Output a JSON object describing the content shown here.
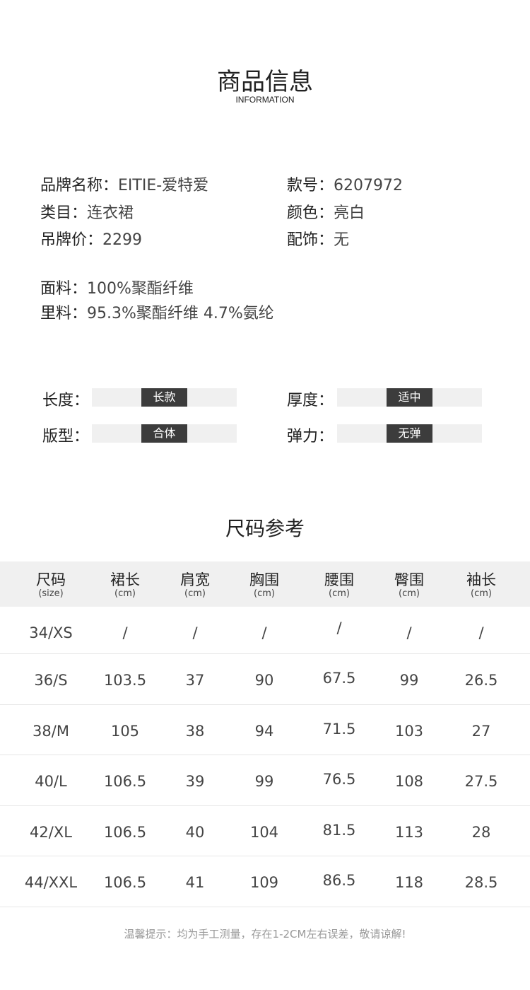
{
  "header": {
    "title": "商品信息",
    "subtitle": "INFORMATION"
  },
  "info": {
    "brand_label": "品牌名称：",
    "brand": "EITIE-爱特爱",
    "style_no_label": "款号：",
    "style_no": "6207972",
    "category_label": "类目：",
    "category": "连衣裙",
    "color_label": "颜色：",
    "color": "亮白",
    "price_label": "吊牌价：",
    "price": "2299",
    "accessory_label": "配饰：",
    "accessory": "无",
    "fabric_label": "面料：",
    "fabric": "100%聚酯纤维",
    "lining_label": "里料：",
    "lining": "95.3%聚酯纤维 4.7%氨纶"
  },
  "attributes": [
    {
      "label": "长度：",
      "value": "长款"
    },
    {
      "label": "厚度：",
      "value": "适中"
    },
    {
      "label": "版型：",
      "value": "合体"
    },
    {
      "label": "弹力：",
      "value": "无弹"
    }
  ],
  "size_chart": {
    "title": "尺码参考",
    "headers": [
      {
        "name": "尺码",
        "unit": "(size)"
      },
      {
        "name": "裙长",
        "unit": "(cm)"
      },
      {
        "name": "肩宽",
        "unit": "(cm)"
      },
      {
        "name": "胸围",
        "unit": "(cm)"
      },
      {
        "name": "腰围",
        "unit": "(cm)"
      },
      {
        "name": "臀围",
        "unit": "(cm)"
      },
      {
        "name": "袖长",
        "unit": "(cm)"
      }
    ],
    "rows": [
      [
        "34/XS",
        "/",
        "/",
        "/",
        "/",
        "/",
        "/"
      ],
      [
        "36/S",
        "103.5",
        "37",
        "90",
        "67.5",
        "99",
        "26.5"
      ],
      [
        "38/M",
        "105",
        "38",
        "94",
        "71.5",
        "103",
        "27"
      ],
      [
        "40/L",
        "106.5",
        "39",
        "99",
        "76.5",
        "108",
        "27.5"
      ],
      [
        "42/XL",
        "106.5",
        "40",
        "104",
        "81.5",
        "113",
        "28"
      ],
      [
        "44/XXL",
        "106.5",
        "41",
        "109",
        "86.5",
        "118",
        "28.5"
      ]
    ]
  },
  "note": "温馨提示：均为手工测量，存在1-2CM左右误差，敬请谅解!"
}
